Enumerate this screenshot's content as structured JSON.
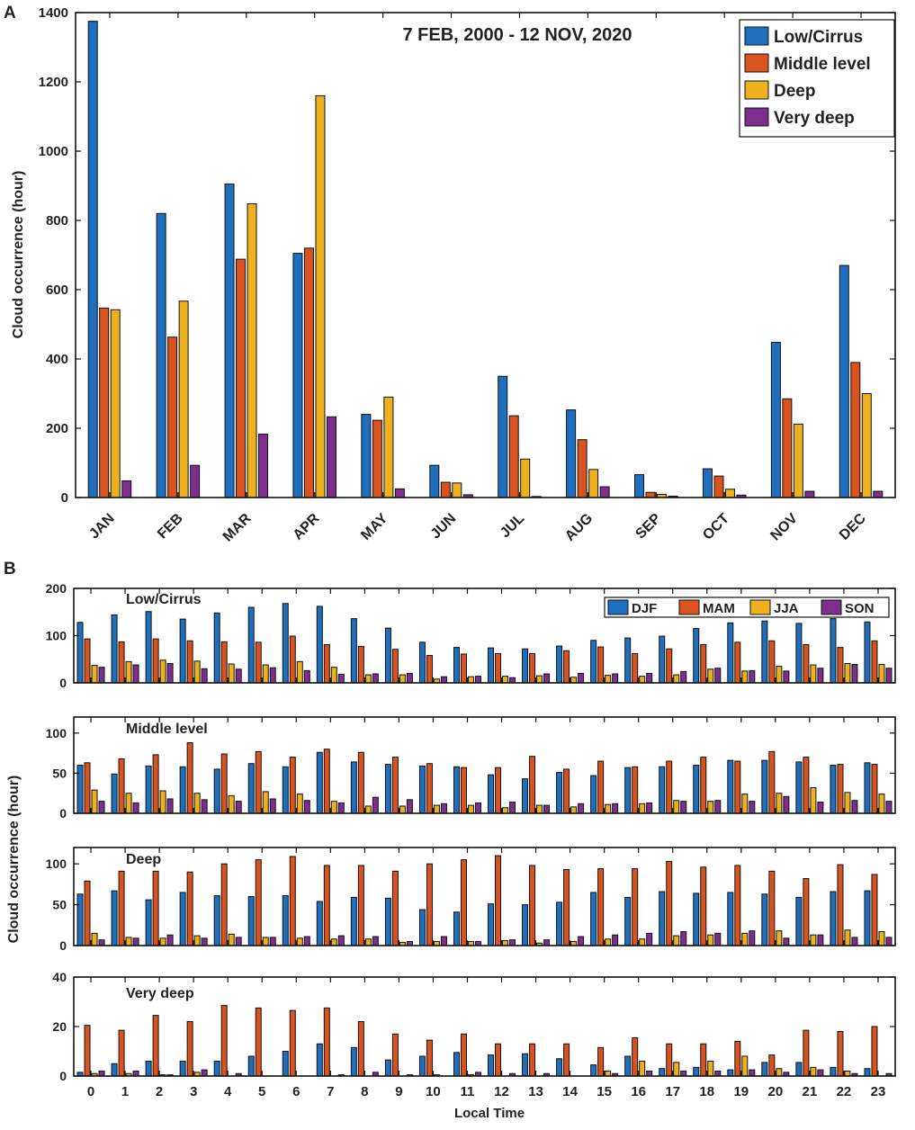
{
  "colors": {
    "low": "#1f6fbf",
    "middle": "#d9531e",
    "deep": "#edb120",
    "verydeep": "#7e2f8e",
    "axis": "#111111"
  },
  "panelA": {
    "label": "A",
    "ylabel": "Cloud occurrence (hour)",
    "title": "7 FEB, 2000 - 12 NOV, 2020"
  },
  "panelB": {
    "label": "B",
    "ylabel": "Cloud occurrence (hour)",
    "xlabel": "Local Time"
  },
  "chart_data": [
    {
      "type": "bar",
      "title": "7 FEB, 2000 - 12 NOV, 2020",
      "ylabel": "Cloud occurrence (hour)",
      "xlabel": "",
      "ylim": [
        0,
        1400
      ],
      "yticks": [
        0,
        200,
        400,
        600,
        800,
        1000,
        1200,
        1400
      ],
      "legend_position": "top-right",
      "categories": [
        "JAN",
        "FEB",
        "MAR",
        "APR",
        "MAY",
        "JUN",
        "JUL",
        "AUG",
        "SEP",
        "OCT",
        "NOV",
        "DEC"
      ],
      "series": [
        {
          "name": "Low/Cirrus",
          "color": "#1f6fbf",
          "values": [
            1375,
            820,
            905,
            705,
            240,
            93,
            350,
            253,
            66,
            83,
            448,
            670
          ]
        },
        {
          "name": "Middle level",
          "color": "#d9531e",
          "values": [
            547,
            463,
            688,
            720,
            223,
            44,
            236,
            167,
            15,
            62,
            285,
            390
          ]
        },
        {
          "name": "Deep",
          "color": "#edb120",
          "values": [
            542,
            567,
            848,
            1160,
            290,
            42,
            111,
            81,
            9,
            24,
            212,
            300
          ]
        },
        {
          "name": "Very deep",
          "color": "#7e2f8e",
          "values": [
            48,
            93,
            183,
            233,
            25,
            8,
            3,
            31,
            4,
            7,
            18,
            18
          ]
        }
      ]
    },
    {
      "type": "bar",
      "title": "Low/Cirrus",
      "ylim": [
        0,
        200
      ],
      "yticks": [
        0,
        100,
        200
      ],
      "legend_position": "top-right",
      "categories": [
        "0",
        "1",
        "2",
        "3",
        "4",
        "5",
        "6",
        "7",
        "8",
        "9",
        "10",
        "11",
        "12",
        "13",
        "14",
        "15",
        "16",
        "17",
        "18",
        "19",
        "20",
        "21",
        "22",
        "23"
      ],
      "series": [
        {
          "name": "DJF",
          "color": "#1f6fbf",
          "values": [
            128,
            144,
            151,
            135,
            148,
            160,
            168,
            162,
            136,
            116,
            86,
            75,
            74,
            72,
            78,
            90,
            95,
            99,
            115,
            127,
            131,
            126,
            136,
            129
          ]
        },
        {
          "name": "MAM",
          "color": "#d9531e",
          "values": [
            93,
            87,
            93,
            89,
            87,
            86,
            99,
            81,
            77,
            71,
            58,
            61,
            62,
            62,
            68,
            76,
            62,
            72,
            81,
            86,
            89,
            81,
            75,
            89
          ]
        },
        {
          "name": "JJA",
          "color": "#edb120",
          "values": [
            37,
            45,
            48,
            46,
            40,
            38,
            45,
            33,
            17,
            17,
            8,
            13,
            14,
            15,
            12,
            16,
            14,
            17,
            29,
            25,
            35,
            38,
            41,
            39
          ]
        },
        {
          "name": "SON",
          "color": "#7e2f8e",
          "values": [
            33,
            38,
            41,
            30,
            29,
            32,
            26,
            18,
            19,
            20,
            13,
            14,
            11,
            19,
            20,
            19,
            20,
            24,
            31,
            26,
            25,
            31,
            39,
            31
          ]
        }
      ]
    },
    {
      "type": "bar",
      "title": "Middle level",
      "ylim": [
        0,
        120
      ],
      "yticks": [
        0,
        50,
        100
      ],
      "categories": [
        "0",
        "1",
        "2",
        "3",
        "4",
        "5",
        "6",
        "7",
        "8",
        "9",
        "10",
        "11",
        "12",
        "13",
        "14",
        "15",
        "16",
        "17",
        "18",
        "19",
        "20",
        "21",
        "22",
        "23"
      ],
      "series": [
        {
          "name": "DJF",
          "color": "#1f6fbf",
          "values": [
            60,
            49,
            59,
            58,
            55,
            62,
            58,
            76,
            64,
            61,
            59,
            58,
            48,
            43,
            51,
            47,
            57,
            58,
            60,
            66,
            66,
            64,
            60,
            63
          ]
        },
        {
          "name": "MAM",
          "color": "#d9531e",
          "values": [
            63,
            68,
            73,
            88,
            74,
            77,
            70,
            80,
            76,
            70,
            62,
            57,
            57,
            71,
            55,
            65,
            58,
            65,
            70,
            65,
            77,
            70,
            61,
            61
          ]
        },
        {
          "name": "JJA",
          "color": "#edb120",
          "values": [
            29,
            25,
            28,
            25,
            22,
            27,
            24,
            15,
            9,
            9,
            10,
            10,
            7,
            10,
            8,
            11,
            12,
            16,
            15,
            24,
            25,
            32,
            26,
            24
          ]
        },
        {
          "name": "SON",
          "color": "#7e2f8e",
          "values": [
            15,
            13,
            18,
            17,
            15,
            18,
            16,
            13,
            20,
            17,
            12,
            13,
            14,
            10,
            12,
            12,
            13,
            15,
            16,
            15,
            21,
            14,
            16,
            15
          ]
        }
      ]
    },
    {
      "type": "bar",
      "title": "Deep",
      "ylim": [
        0,
        120
      ],
      "yticks": [
        0,
        50,
        100
      ],
      "categories": [
        "0",
        "1",
        "2",
        "3",
        "4",
        "5",
        "6",
        "7",
        "8",
        "9",
        "10",
        "11",
        "12",
        "13",
        "14",
        "15",
        "16",
        "17",
        "18",
        "19",
        "20",
        "21",
        "22",
        "23"
      ],
      "series": [
        {
          "name": "DJF",
          "color": "#1f6fbf",
          "values": [
            63,
            67,
            56,
            65,
            61,
            60,
            61,
            54,
            59,
            58,
            44,
            41,
            51,
            50,
            53,
            65,
            59,
            66,
            64,
            65,
            63,
            59,
            66,
            67
          ]
        },
        {
          "name": "MAM",
          "color": "#d9531e",
          "values": [
            79,
            91,
            91,
            90,
            100,
            105,
            109,
            98,
            98,
            91,
            100,
            105,
            110,
            98,
            93,
            94,
            94,
            103,
            96,
            98,
            91,
            82,
            99,
            87
          ]
        },
        {
          "name": "JJA",
          "color": "#edb120",
          "values": [
            15,
            10,
            9,
            12,
            14,
            10,
            9,
            8,
            8,
            4,
            5,
            5,
            6,
            3,
            5,
            8,
            8,
            12,
            13,
            15,
            18,
            13,
            19,
            17
          ]
        },
        {
          "name": "SON",
          "color": "#7e2f8e",
          "values": [
            7,
            9,
            13,
            9,
            10,
            10,
            11,
            12,
            11,
            5,
            11,
            5,
            7,
            7,
            11,
            13,
            15,
            17,
            15,
            18,
            9,
            13,
            10,
            10
          ]
        }
      ]
    },
    {
      "type": "bar",
      "title": "Very deep",
      "ylim": [
        0,
        40
      ],
      "yticks": [
        0,
        20,
        40
      ],
      "categories": [
        "0",
        "1",
        "2",
        "3",
        "4",
        "5",
        "6",
        "7",
        "8",
        "9",
        "10",
        "11",
        "12",
        "13",
        "14",
        "15",
        "16",
        "17",
        "18",
        "19",
        "20",
        "21",
        "22",
        "23"
      ],
      "series": [
        {
          "name": "DJF",
          "color": "#1f6fbf",
          "values": [
            1.5,
            5,
            6,
            6,
            6,
            8,
            10,
            13,
            11.5,
            6.5,
            8,
            9.5,
            8.5,
            9,
            7,
            4.5,
            8,
            3,
            3.5,
            2.5,
            5.5,
            5.5,
            3.5,
            3
          ]
        },
        {
          "name": "MAM",
          "color": "#d9531e",
          "values": [
            20.5,
            18.5,
            24.5,
            22,
            28.5,
            27.5,
            26.5,
            27.5,
            22,
            17,
            14.5,
            17,
            13,
            13,
            13,
            11.5,
            15.5,
            13,
            13,
            14,
            8.5,
            18.5,
            18,
            20
          ]
        },
        {
          "name": "JJA",
          "color": "#edb120",
          "values": [
            1,
            1,
            0.5,
            1.5,
            0,
            0,
            0,
            0,
            0,
            0,
            0.5,
            0.5,
            0,
            0,
            0,
            2,
            6,
            5.5,
            6,
            8,
            3,
            3.5,
            2,
            0
          ]
        },
        {
          "name": "SON",
          "color": "#7e2f8e",
          "values": [
            2,
            2,
            0.5,
            2.5,
            1,
            0,
            0,
            0.5,
            1.5,
            0.5,
            0,
            1.5,
            1,
            1,
            0,
            1,
            2,
            2,
            2,
            2.5,
            1.5,
            2.5,
            1,
            1
          ]
        }
      ]
    }
  ]
}
